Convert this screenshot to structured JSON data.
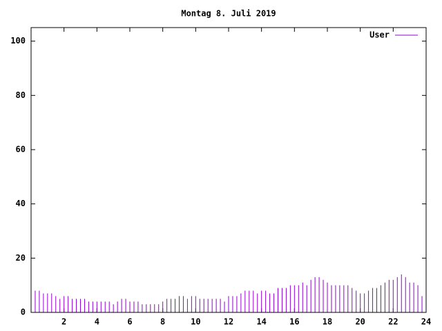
{
  "chart_data": {
    "type": "impulses",
    "title": "Montag 8. Juli 2019",
    "x": [
      0,
      0.25,
      0.5,
      0.75,
      1,
      1.25,
      1.5,
      1.75,
      2,
      2.25,
      2.5,
      2.75,
      3,
      3.25,
      3.5,
      3.75,
      4,
      4.25,
      4.5,
      4.75,
      5,
      5.25,
      5.5,
      5.75,
      6,
      6.25,
      6.5,
      6.75,
      7,
      7.25,
      7.5,
      7.75,
      8,
      8.25,
      8.5,
      8.75,
      9,
      9.25,
      9.5,
      9.75,
      10,
      10.25,
      10.5,
      10.75,
      11,
      11.25,
      11.5,
      11.75,
      12,
      12.25,
      12.5,
      12.75,
      13,
      13.25,
      13.5,
      13.75,
      14,
      14.25,
      14.5,
      14.75,
      15,
      15.25,
      15.5,
      15.75,
      16,
      16.25,
      16.5,
      16.75,
      17,
      17.25,
      17.5,
      17.75,
      18,
      18.25,
      18.5,
      18.75,
      19,
      19.25,
      19.5,
      19.75,
      20,
      20.25,
      20.5,
      20.75,
      21,
      21.25,
      21.5,
      21.75,
      22,
      22.25,
      22.5,
      22.75,
      23,
      23.25,
      23.5,
      23.75
    ],
    "series": [
      {
        "name": "User",
        "color": "#9400d3",
        "values": [
          9,
          8,
          8,
          7,
          7,
          7,
          6,
          5,
          6,
          6,
          5,
          5,
          5,
          5,
          4,
          4,
          4,
          4,
          4,
          4,
          3,
          4,
          5,
          5,
          4,
          4,
          4,
          3,
          3,
          3,
          3,
          3,
          4,
          5,
          5,
          5,
          6,
          6,
          5,
          6,
          6,
          5,
          5,
          5,
          5,
          5,
          5,
          4,
          6,
          6,
          6,
          7,
          8,
          8,
          8,
          7,
          8,
          8,
          7,
          7,
          9,
          9,
          9,
          10,
          10,
          10,
          11,
          10,
          12,
          13,
          13,
          12,
          11,
          10,
          10,
          10,
          10,
          10,
          9,
          8,
          7,
          7,
          8,
          9,
          9,
          10,
          11,
          12,
          12,
          13,
          14,
          13,
          11,
          11,
          10,
          6
        ]
      }
    ],
    "xlim": [
      0,
      24
    ],
    "xticks": [
      2,
      4,
      6,
      8,
      10,
      12,
      14,
      16,
      18,
      20,
      22,
      24
    ],
    "ylim": [
      0,
      105
    ],
    "yticks": [
      0,
      20,
      40,
      60,
      80,
      100
    ],
    "legend": "top-right"
  }
}
